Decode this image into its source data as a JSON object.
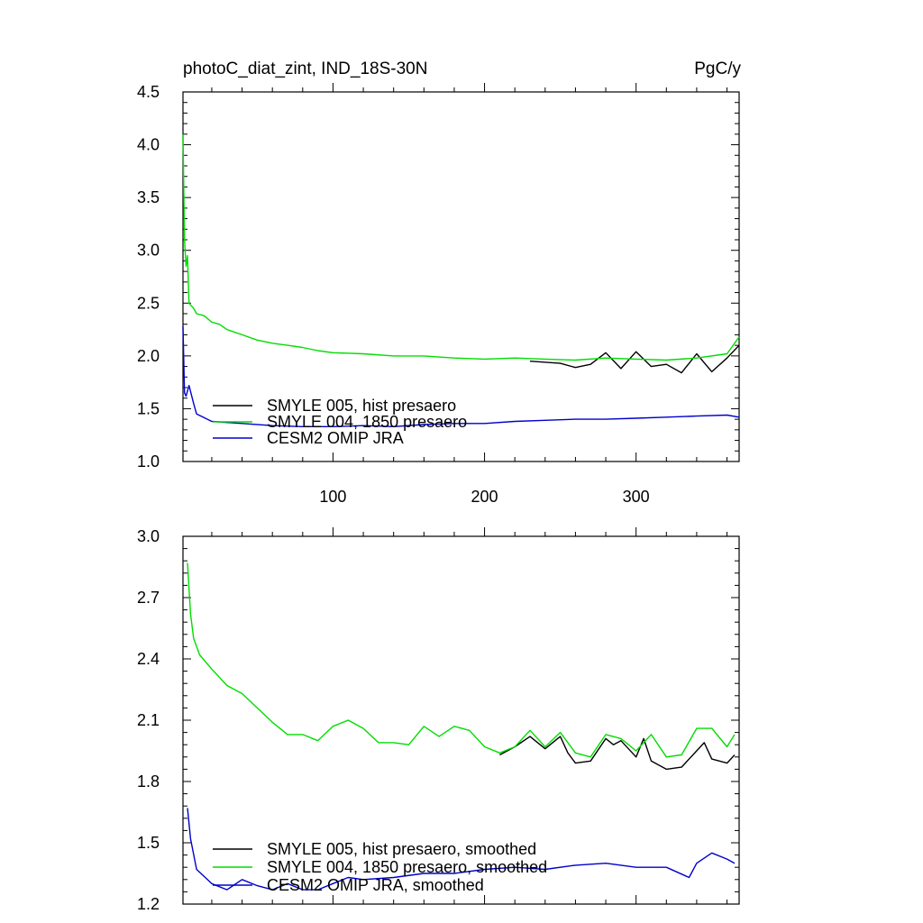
{
  "header": {
    "title": "photoC_diat_zint, IND_18S-30N",
    "units": "PgC/y"
  },
  "colors": {
    "hist": "#000000",
    "pre1850": "#00dd00",
    "omip": "#0000cc"
  },
  "chart_data": [
    {
      "type": "line",
      "panel": "raw",
      "xlim": [
        1,
        368
      ],
      "ylim": [
        1.0,
        4.5
      ],
      "x_ticks": [
        100,
        200,
        300
      ],
      "y_ticks": [
        "1.0",
        "1.5",
        "2.0",
        "2.5",
        "3.0",
        "3.5",
        "4.0",
        "4.5"
      ],
      "legend_placement": "bottom-left",
      "series": [
        {
          "name": "SMYLE 005, hist presaero",
          "color": "#000000",
          "start_x": 230,
          "x": [
            230,
            250,
            260,
            270,
            280,
            290,
            300,
            310,
            320,
            330,
            340,
            350,
            360,
            368
          ],
          "values": [
            1.95,
            1.93,
            1.89,
            1.92,
            2.03,
            1.88,
            2.04,
            1.9,
            1.92,
            1.84,
            2.02,
            1.85,
            1.98,
            2.1
          ]
        },
        {
          "name": "SMYLE 004, 1850 presaero",
          "color": "#00dd00",
          "x": [
            1,
            2,
            3,
            4,
            5,
            8,
            10,
            15,
            20,
            25,
            30,
            40,
            50,
            60,
            70,
            80,
            90,
            100,
            120,
            140,
            160,
            180,
            200,
            220,
            240,
            260,
            280,
            300,
            320,
            340,
            360,
            368
          ],
          "values": [
            4.1,
            3.1,
            2.85,
            2.95,
            2.5,
            2.45,
            2.4,
            2.38,
            2.32,
            2.3,
            2.25,
            2.2,
            2.15,
            2.12,
            2.1,
            2.08,
            2.05,
            2.03,
            2.02,
            2.0,
            2.0,
            1.98,
            1.97,
            1.98,
            1.97,
            1.96,
            1.98,
            1.97,
            1.96,
            1.98,
            2.02,
            2.18
          ]
        },
        {
          "name": "CESM2 OMIP JRA",
          "color": "#0000cc",
          "x": [
            1,
            2,
            3,
            5,
            8,
            10,
            20,
            40,
            60,
            80,
            100,
            120,
            140,
            160,
            180,
            200,
            220,
            240,
            260,
            280,
            300,
            320,
            340,
            360,
            368
          ],
          "values": [
            2.28,
            1.65,
            1.62,
            1.72,
            1.55,
            1.45,
            1.38,
            1.36,
            1.34,
            1.33,
            1.33,
            1.34,
            1.33,
            1.35,
            1.36,
            1.36,
            1.38,
            1.39,
            1.4,
            1.4,
            1.41,
            1.42,
            1.43,
            1.44,
            1.42
          ]
        }
      ]
    },
    {
      "type": "line",
      "panel": "smoothed",
      "xlim": [
        1,
        368
      ],
      "ylim": [
        1.2,
        3.0
      ],
      "x_ticks": [
        100,
        200,
        300
      ],
      "y_ticks": [
        "1.2",
        "1.5",
        "1.8",
        "2.1",
        "2.4",
        "2.7",
        "3.0"
      ],
      "legend_placement": "bottom-left",
      "series": [
        {
          "name": "SMYLE 005, hist presaero, smoothed",
          "color": "#000000",
          "x": [
            210,
            220,
            230,
            240,
            250,
            255,
            260,
            270,
            280,
            285,
            290,
            300,
            305,
            310,
            320,
            330,
            340,
            345,
            350,
            360,
            365
          ],
          "values": [
            1.93,
            1.97,
            2.02,
            1.96,
            2.02,
            1.94,
            1.89,
            1.9,
            2.01,
            1.98,
            2.0,
            1.92,
            2.01,
            1.9,
            1.86,
            1.87,
            1.95,
            1.99,
            1.91,
            1.89,
            1.93
          ]
        },
        {
          "name": "SMYLE 004, 1850 presaero, smoothed",
          "color": "#00dd00",
          "x": [
            4,
            6,
            8,
            12,
            20,
            30,
            40,
            50,
            60,
            70,
            80,
            90,
            100,
            110,
            120,
            130,
            140,
            150,
            160,
            170,
            180,
            190,
            200,
            210,
            220,
            230,
            240,
            250,
            260,
            270,
            280,
            290,
            300,
            310,
            320,
            330,
            340,
            350,
            360,
            365
          ],
          "values": [
            2.87,
            2.62,
            2.5,
            2.42,
            2.35,
            2.27,
            2.23,
            2.16,
            2.09,
            2.03,
            2.03,
            2.0,
            2.07,
            2.1,
            2.06,
            1.99,
            1.99,
            1.98,
            2.07,
            2.02,
            2.07,
            2.05,
            1.97,
            1.94,
            1.97,
            2.05,
            1.97,
            2.04,
            1.94,
            1.92,
            2.03,
            2.01,
            1.95,
            2.03,
            1.92,
            1.93,
            2.06,
            2.06,
            1.97,
            2.03
          ]
        },
        {
          "name": "CESM2 OMIP JRA, smoothed",
          "color": "#0000cc",
          "x": [
            4,
            6,
            10,
            20,
            30,
            40,
            50,
            60,
            70,
            80,
            90,
            100,
            110,
            120,
            140,
            160,
            180,
            200,
            220,
            240,
            260,
            280,
            300,
            320,
            335,
            340,
            350,
            360,
            365
          ],
          "values": [
            1.67,
            1.52,
            1.37,
            1.3,
            1.27,
            1.32,
            1.29,
            1.27,
            1.3,
            1.27,
            1.27,
            1.3,
            1.33,
            1.32,
            1.33,
            1.35,
            1.35,
            1.37,
            1.38,
            1.37,
            1.39,
            1.4,
            1.38,
            1.38,
            1.33,
            1.4,
            1.45,
            1.42,
            1.4
          ]
        }
      ]
    }
  ]
}
